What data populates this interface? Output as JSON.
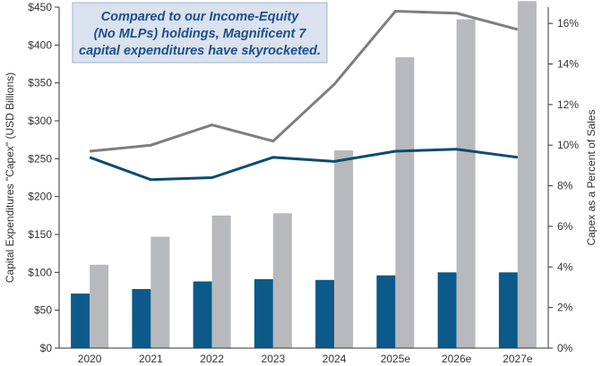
{
  "chart_data": {
    "type": "bar",
    "categories": [
      "2020",
      "2021",
      "2022",
      "2023",
      "2024",
      "2025e",
      "2026e",
      "2027e"
    ],
    "series": [
      {
        "name": "",
        "kind": "bar",
        "axis": "left",
        "color": "#0b5a8a",
        "values": [
          72,
          78,
          88,
          91,
          90,
          96,
          100,
          100
        ]
      },
      {
        "name": "",
        "kind": "bar",
        "axis": "left",
        "color": "#b8b9bc",
        "values": [
          110,
          147,
          175,
          178,
          261,
          384,
          434,
          458
        ]
      },
      {
        "name": "",
        "kind": "line",
        "axis": "right",
        "color": "#0b4c70",
        "values": [
          9.4,
          8.3,
          8.4,
          9.4,
          9.2,
          9.7,
          9.8,
          9.4
        ]
      },
      {
        "name": "",
        "kind": "line",
        "axis": "right",
        "color": "#7d7e80",
        "values": [
          9.7,
          10.0,
          11.0,
          10.2,
          13.0,
          16.6,
          16.5,
          15.7
        ]
      }
    ],
    "left_axis": {
      "label": "Capital Expenditures \"Capex\" (USD Billions)",
      "range": [
        0,
        450
      ],
      "ticks": [
        0,
        50,
        100,
        150,
        200,
        250,
        300,
        350,
        400,
        450
      ],
      "tick_labels": [
        "$0",
        "$50",
        "$100",
        "$150",
        "$200",
        "$250",
        "$300",
        "$350",
        "$400",
        "$450"
      ]
    },
    "right_axis": {
      "label": "Capex as a Percent of Sales",
      "range": [
        0,
        16.8
      ],
      "ticks": [
        0,
        2,
        4,
        6,
        8,
        10,
        12,
        14,
        16
      ],
      "tick_labels": [
        "0%",
        "2%",
        "4%",
        "6%",
        "8%",
        "10%",
        "12%",
        "14%",
        "16%"
      ]
    },
    "annotation": {
      "lines": [
        "Compared to our Income-Equity",
        "(No MLPs) holdings, Magnificent 7",
        "capital expenditures have skyrocketed."
      ]
    },
    "grid": false,
    "legend": "none"
  }
}
